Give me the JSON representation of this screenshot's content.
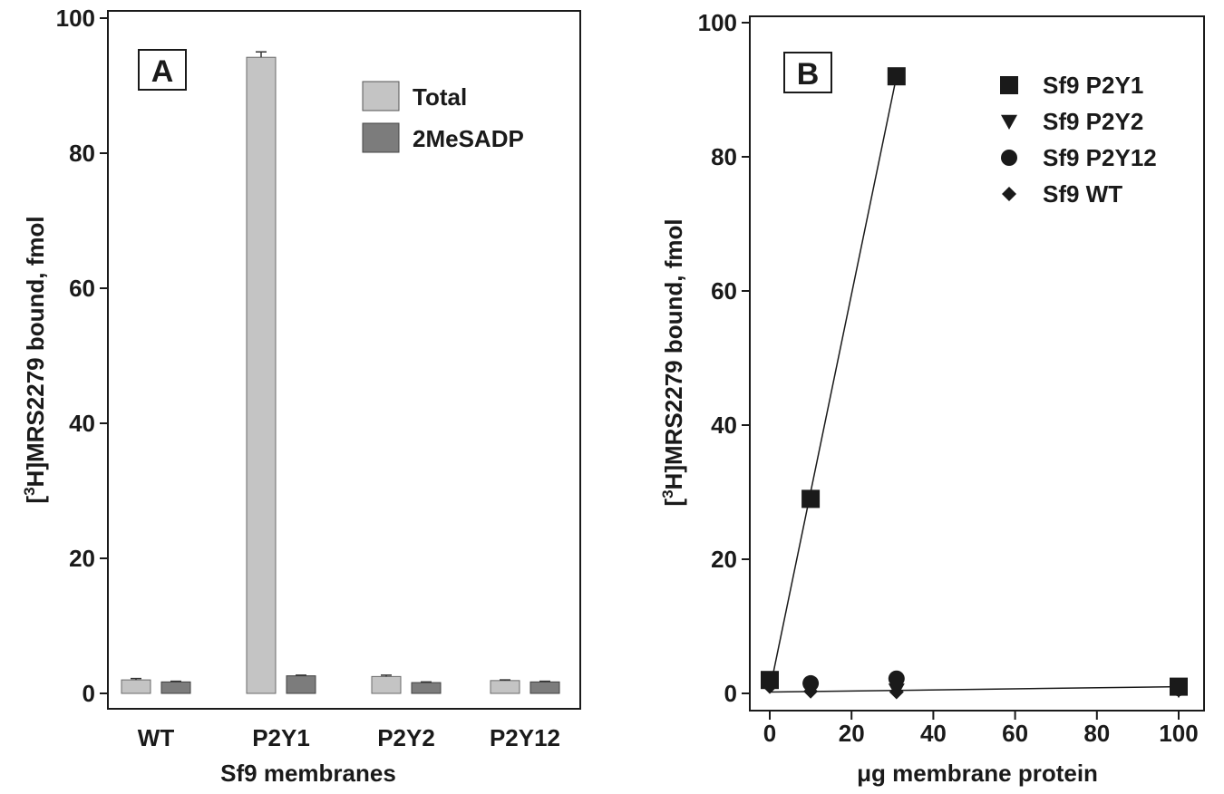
{
  "colors": {
    "total": "#c4c4c4",
    "mesadp": "#7c7c7c",
    "ink": "#1a1a1a"
  },
  "chart_data": [
    {
      "type": "bar",
      "panel_label": "A",
      "xlabel": "Sf9 membranes",
      "ylabel_pre": "[",
      "ylabel_sup": "3",
      "ylabel_post": "H]MRS2279 bound, fmol",
      "ylim": [
        0,
        100
      ],
      "yticks": [
        "0",
        "20",
        "40",
        "60",
        "80",
        "100"
      ],
      "categories": [
        "WT",
        "P2Y1",
        "P2Y2",
        "P2Y12"
      ],
      "series": [
        {
          "name": "Total",
          "values": [
            2.0,
            94.2,
            2.5,
            1.9
          ],
          "errors": [
            0.2,
            0.8,
            0.2,
            0.1
          ]
        },
        {
          "name": "2MeSADP",
          "values": [
            1.7,
            2.6,
            1.6,
            1.7
          ],
          "errors": [
            0.1,
            0.1,
            0.1,
            0.1
          ]
        }
      ],
      "legend_position": "top-right"
    },
    {
      "type": "scatter",
      "panel_label": "B",
      "xlabel": "μg membrane protein",
      "ylabel_pre": "[",
      "ylabel_sup": "3",
      "ylabel_post": "H]MRS2279 bound,  fmol",
      "xlim": [
        -3,
        103
      ],
      "ylim": [
        -3,
        100
      ],
      "xticks": [
        "0",
        "20",
        "40",
        "60",
        "80",
        "100"
      ],
      "yticks": [
        "0",
        "20",
        "40",
        "60",
        "80",
        "100"
      ],
      "series": [
        {
          "name": "Sf9 P2Y1",
          "marker": "square",
          "x": [
            0,
            10,
            31,
            100
          ],
          "y": [
            2.0,
            29,
            92,
            1.0
          ]
        },
        {
          "name": "Sf9 P2Y2",
          "marker": "triangle-down",
          "x": [
            0,
            10,
            31,
            100
          ],
          "y": [
            1.5,
            0.5,
            0.5,
            0.5
          ]
        },
        {
          "name": "Sf9 P2Y12",
          "marker": "circle",
          "x": [
            0,
            10,
            31,
            100
          ],
          "y": [
            2.0,
            1.5,
            2.2,
            0.8
          ]
        },
        {
          "name": "Sf9 WT",
          "marker": "diamond",
          "x": [
            0,
            10,
            31,
            100
          ],
          "y": [
            1.0,
            0.3,
            0.2,
            0.5
          ]
        }
      ],
      "lines": [
        {
          "x": [
            0,
            31
          ],
          "y": [
            0.5,
            92
          ]
        },
        {
          "x": [
            0,
            100
          ],
          "y": [
            0.2,
            1.0
          ]
        }
      ],
      "legend_position": "top-right"
    }
  ]
}
